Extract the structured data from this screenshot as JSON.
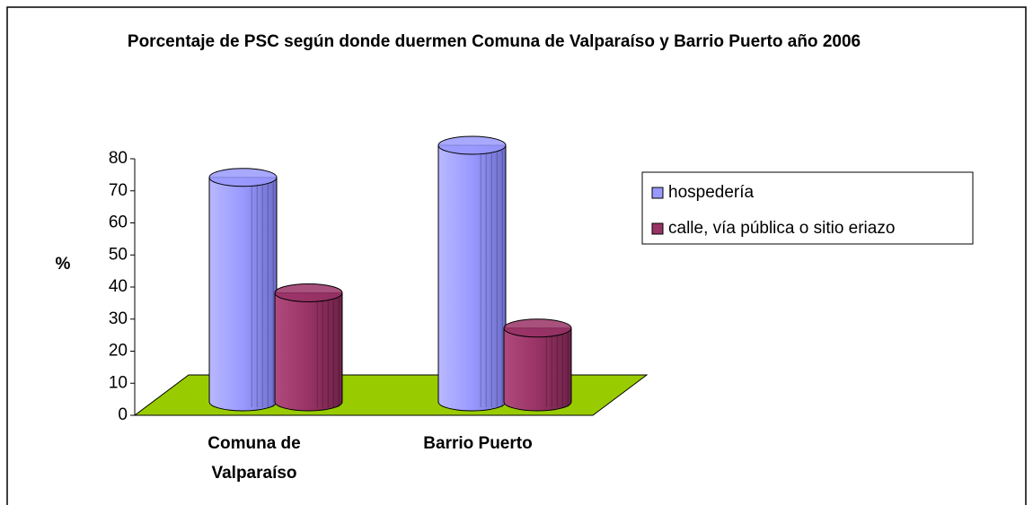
{
  "chart_data": {
    "type": "bar3d",
    "title": "Porcentaje de PSC según donde duermen Comuna de Valparaíso y Barrio Puerto año 2006",
    "ylabel": "%",
    "categories": [
      "Comuna de Valparaíso",
      "Barrio Puerto"
    ],
    "series": [
      {
        "name": "hospedería",
        "color": "#9999ff",
        "values": [
          70,
          80
        ]
      },
      {
        "name": "calle, vía pública o sitio eriazo",
        "color": "#993366",
        "values": [
          34,
          23
        ]
      }
    ],
    "ylim": [
      0,
      80
    ],
    "yticks": [
      0,
      10,
      20,
      30,
      40,
      50,
      60,
      70,
      80
    ],
    "floor_color": "#99cc00",
    "legend": "right"
  }
}
